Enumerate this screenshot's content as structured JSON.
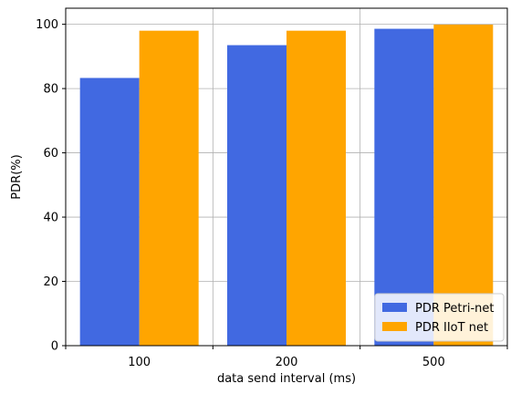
{
  "chart_data": {
    "type": "bar",
    "categories": [
      "100",
      "200",
      "500"
    ],
    "series": [
      {
        "name": "PDR Petri-net",
        "values": [
          83.3,
          93.5,
          98.6
        ],
        "color": "#4169e1"
      },
      {
        "name": "PDR IIoT net",
        "values": [
          98.0,
          98.0,
          99.9
        ],
        "color": "#ffa500"
      }
    ],
    "title": "",
    "xlabel": "data send interval (ms)",
    "ylabel": "PDR(%)",
    "ylim": [
      0,
      105
    ],
    "yticks": [
      0,
      20,
      40,
      60,
      80,
      100
    ],
    "grid": true,
    "legend_position": "lower-right"
  }
}
